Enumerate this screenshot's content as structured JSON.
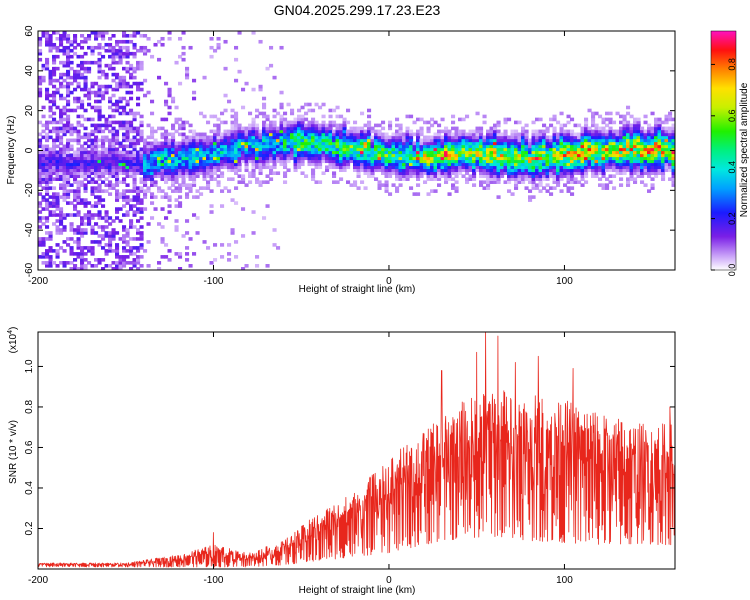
{
  "title": "GN04.2025.299.17.23.E23",
  "chart_data": [
    {
      "type": "heatmap",
      "name": "spectrogram",
      "xlabel": "Height of straight line (km)",
      "ylabel": "Frequency (Hz)",
      "xlim": [
        -200,
        163
      ],
      "ylim": [
        -60,
        60
      ],
      "xticks": [
        -200,
        -100,
        0,
        100
      ],
      "yticks": [
        -60,
        -40,
        -20,
        0,
        20,
        40,
        60
      ],
      "colorbar": {
        "label": "Normalized spectral amplitude",
        "range": [
          0,
          0.93
        ],
        "ticks": [
          0.0,
          0.2,
          0.4,
          0.6,
          0.8
        ]
      },
      "band_center_hz": [
        {
          "x": -200,
          "f": -6
        },
        {
          "x": -140,
          "f": -6
        },
        {
          "x": -120,
          "f": -4
        },
        {
          "x": -100,
          "f": -1
        },
        {
          "x": -80,
          "f": 2
        },
        {
          "x": -60,
          "f": 4
        },
        {
          "x": -45,
          "f": 5
        },
        {
          "x": -30,
          "f": 2
        },
        {
          "x": -10,
          "f": -1
        },
        {
          "x": 0,
          "f": -2
        },
        {
          "x": 20,
          "f": -3
        },
        {
          "x": 40,
          "f": -1
        },
        {
          "x": 60,
          "f": -2
        },
        {
          "x": 80,
          "f": -4
        },
        {
          "x": 100,
          "f": -2
        },
        {
          "x": 120,
          "f": 0
        },
        {
          "x": 140,
          "f": 1
        },
        {
          "x": 163,
          "f": 0
        }
      ]
    },
    {
      "type": "line",
      "name": "snr",
      "xlabel": "Height of straight line (km)",
      "ylabel": "SNR (10 * v/v)",
      "y_multiplier": "(x10",
      "y_multiplier_exp": "4",
      "y_multiplier_close": ")",
      "xlim": [
        -200,
        163
      ],
      "ylim": [
        0,
        1.17
      ],
      "xticks": [
        -200,
        -100,
        0,
        100
      ],
      "yticks": [
        0.2,
        0.4,
        0.6,
        0.8,
        1.0
      ],
      "color": "#e8261c",
      "envelope": [
        {
          "x": -200,
          "min": 0.01,
          "max": 0.03
        },
        {
          "x": -150,
          "min": 0.01,
          "max": 0.03
        },
        {
          "x": -120,
          "min": 0.01,
          "max": 0.07
        },
        {
          "x": -100,
          "min": 0.01,
          "max": 0.12
        },
        {
          "x": -80,
          "min": 0.01,
          "max": 0.08
        },
        {
          "x": -60,
          "min": 0.02,
          "max": 0.14
        },
        {
          "x": -40,
          "min": 0.04,
          "max": 0.28
        },
        {
          "x": -20,
          "min": 0.06,
          "max": 0.38
        },
        {
          "x": 0,
          "min": 0.08,
          "max": 0.55
        },
        {
          "x": 20,
          "min": 0.12,
          "max": 0.68
        },
        {
          "x": 40,
          "min": 0.15,
          "max": 0.82
        },
        {
          "x": 60,
          "min": 0.16,
          "max": 0.9
        },
        {
          "x": 80,
          "min": 0.14,
          "max": 0.86
        },
        {
          "x": 100,
          "min": 0.13,
          "max": 0.84
        },
        {
          "x": 120,
          "min": 0.12,
          "max": 0.78
        },
        {
          "x": 140,
          "min": 0.12,
          "max": 0.72
        },
        {
          "x": 163,
          "min": 0.12,
          "max": 0.72
        }
      ],
      "peaks": [
        {
          "x": 30,
          "y": 0.98
        },
        {
          "x": 50,
          "y": 1.07
        },
        {
          "x": 55,
          "y": 1.17
        },
        {
          "x": 62,
          "y": 1.15
        },
        {
          "x": 72,
          "y": 1.02
        },
        {
          "x": 85,
          "y": 1.05
        },
        {
          "x": 105,
          "y": 0.99
        },
        {
          "x": 160,
          "y": 0.8
        },
        {
          "x": -100,
          "y": 0.18
        }
      ]
    }
  ]
}
